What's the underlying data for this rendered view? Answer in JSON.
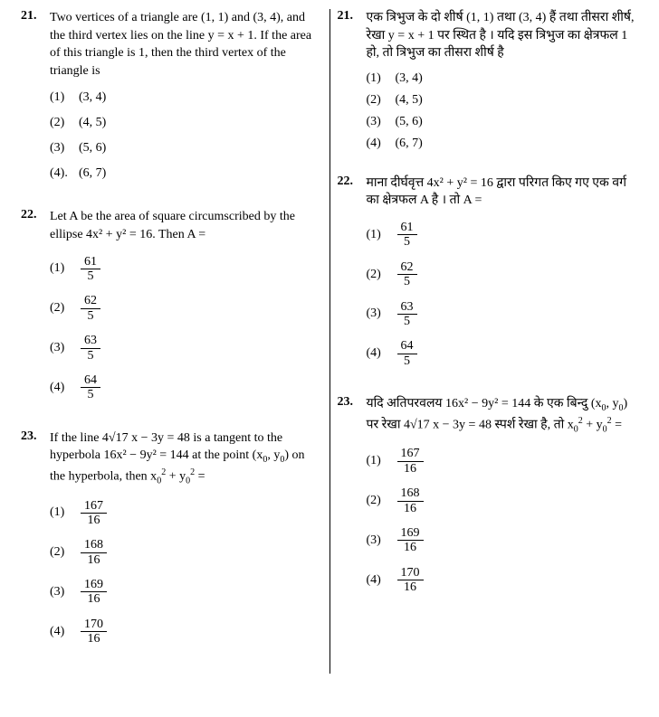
{
  "left": {
    "q21": {
      "num": "21.",
      "text": "Two vertices of a triangle are (1, 1) and (3, 4), and the third vertex lies on the line  y = x + 1.  If the area of this triangle is 1, then the third vertex of the triangle is",
      "opts": [
        "(1)",
        "(2)",
        "(3)",
        "(4)."
      ],
      "vals": [
        "(3, 4)",
        "(4, 5)",
        "(5, 6)",
        "(6, 7)"
      ]
    },
    "q22": {
      "num": "22.",
      "text": "Let A be the area of square circumscribed by the ellipse  4x² + y² = 16.  Then  A =",
      "opts": [
        "(1)",
        "(2)",
        "(3)",
        "(4)"
      ],
      "fracs": [
        [
          "61",
          "5"
        ],
        [
          "62",
          "5"
        ],
        [
          "63",
          "5"
        ],
        [
          "64",
          "5"
        ]
      ]
    },
    "q23": {
      "num": "23.",
      "text_pre": "If the line  4√17 x − 3y = 48  is a tangent to the hyperbola  16x² − 9y² = 144  at the point (x",
      "text_mid": ", y",
      "text_post": ") on the hyperbola, then  x",
      "text_end1": " + y",
      "text_end2": " =",
      "opts": [
        "(1)",
        "(2)",
        "(3)",
        "(4)"
      ],
      "fracs": [
        [
          "167",
          "16"
        ],
        [
          "168",
          "16"
        ],
        [
          "169",
          "16"
        ],
        [
          "170",
          "16"
        ]
      ]
    }
  },
  "right": {
    "q21": {
      "num": "21.",
      "text": "एक त्रिभुज के दो शीर्ष (1, 1) तथा (3, 4) हैं तथा तीसरा शीर्ष, रेखा  y = x + 1  पर स्थित है । यदि इस त्रिभुज का क्षेत्रफल 1 हो, तो त्रिभुज का तीसरा शीर्ष है",
      "opts": [
        "(1)",
        "(2)",
        "(3)",
        "(4)"
      ],
      "vals": [
        "(3, 4)",
        "(4, 5)",
        "(5, 6)",
        "(6, 7)"
      ]
    },
    "q22": {
      "num": "22.",
      "text": "माना दीर्घवृत्त  4x² + y² = 16  द्वारा परिगत किए गए एक वर्ग का क्षेत्रफल A है । तो A =",
      "opts": [
        "(1)",
        "(2)",
        "(3)",
        "(4)"
      ],
      "fracs": [
        [
          "61",
          "5"
        ],
        [
          "62",
          "5"
        ],
        [
          "63",
          "5"
        ],
        [
          "64",
          "5"
        ]
      ]
    },
    "q23": {
      "num": "23.",
      "text_pre": "यदि अतिपरवलय 16x² − 9y² = 144 के एक बिन्दु (x",
      "text_mid": ", y",
      "text_post": ") पर रेखा 4√17 x − 3y = 48 स्पर्श रेखा है, तो  x",
      "text_end1": " + y",
      "text_end2": " =",
      "opts": [
        "(1)",
        "(2)",
        "(3)",
        "(4)"
      ],
      "fracs": [
        [
          "167",
          "16"
        ],
        [
          "168",
          "16"
        ],
        [
          "169",
          "16"
        ],
        [
          "170",
          "16"
        ]
      ]
    }
  },
  "zero": "0",
  "two": "2"
}
